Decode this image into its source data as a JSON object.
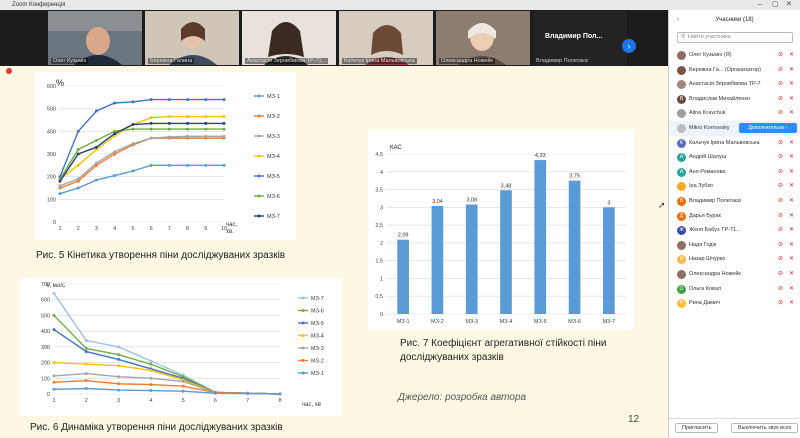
{
  "window": {
    "title": "Zoom Конференція"
  },
  "videos": [
    {
      "name": "Олег Кузьмін"
    },
    {
      "name": "Бережна Галина"
    },
    {
      "name": "Анастасія Зеровбівова ТР-71..."
    },
    {
      "name": "Кальчук Ірина Мальвовська"
    },
    {
      "name": "Олександра Ножейк"
    },
    {
      "name": "Владимир Полетаєв",
      "display": "Владимир Пол..."
    }
  ],
  "slide": {
    "fig5": {
      "caption": "Рис. 5 Кінетика утворення піни досліджуваних зразків",
      "ylabel": "%",
      "xlabel": "час,",
      "xlabel2": "хв.",
      "yticks": [
        "0",
        "100",
        "200",
        "300",
        "400",
        "500",
        "600"
      ],
      "xticks": [
        "1",
        "2",
        "3",
        "4",
        "5",
        "6",
        "7",
        "8",
        "9",
        "10"
      ]
    },
    "fig6": {
      "caption": "Рис. 6  Динаміка утворення піни досліджуваних зразків",
      "ylabel": "V, мл/с",
      "xlabel": "час, хв",
      "yticks": [
        "0",
        "100",
        "200",
        "300",
        "400",
        "500",
        "600",
        "700"
      ],
      "xticks": [
        "1",
        "2",
        "3",
        "4",
        "5",
        "6",
        "7",
        "8"
      ]
    },
    "fig7": {
      "caption_l1": "Рис. 7 Коефіцієнт агрегативної стійкості піни",
      "caption_l2": "досліджуваних зразків",
      "ylabel": "КАС",
      "yticks": [
        "0",
        "0,5",
        "1",
        "1,5",
        "2",
        "2,5",
        "3",
        "3,5",
        "4",
        "4,5"
      ]
    },
    "source": "Джерело: розробка автора",
    "page_number": "12"
  },
  "chart_data": [
    {
      "type": "line",
      "title": "",
      "ylabel": "%",
      "xlabel": "час, хв.",
      "x": [
        1,
        2,
        3,
        4,
        5,
        6,
        7,
        8,
        9,
        10
      ],
      "ylim": [
        0,
        600
      ],
      "series": [
        {
          "name": "МЗ-1",
          "color": "#5b9bd5",
          "values": [
            125,
            150,
            185,
            205,
            225,
            250,
            250,
            250,
            250,
            250
          ]
        },
        {
          "name": "МЗ-2",
          "color": "#ed7d31",
          "values": [
            150,
            180,
            250,
            300,
            340,
            370,
            370,
            370,
            370,
            370
          ]
        },
        {
          "name": "МЗ-3",
          "color": "#a5a5a5",
          "values": [
            160,
            190,
            260,
            310,
            345,
            370,
            375,
            378,
            378,
            378
          ]
        },
        {
          "name": "МЗ-4",
          "color": "#ffc000",
          "values": [
            190,
            250,
            320,
            380,
            430,
            460,
            465,
            465,
            465,
            465
          ]
        },
        {
          "name": "МЗ-5",
          "color": "#4472c4",
          "values": [
            200,
            400,
            490,
            525,
            530,
            540,
            540,
            540,
            540,
            540
          ]
        },
        {
          "name": "МЗ-6",
          "color": "#70ad47",
          "values": [
            190,
            320,
            360,
            400,
            410,
            410,
            410,
            410,
            410,
            410
          ]
        },
        {
          "name": "МЗ-7",
          "color": "#264478",
          "values": [
            180,
            300,
            330,
            390,
            430,
            435,
            435,
            435,
            435,
            435
          ]
        }
      ]
    },
    {
      "type": "line",
      "title": "",
      "ylabel": "V, мл/с",
      "xlabel": "час, хв",
      "x": [
        1,
        2,
        3,
        4,
        5,
        6,
        7,
        8
      ],
      "ylim": [
        0,
        700
      ],
      "series": [
        {
          "name": "МЗ-7",
          "color": "#9dc3e6",
          "values": [
            640,
            340,
            300,
            210,
            120,
            10,
            5,
            0
          ]
        },
        {
          "name": "МЗ-6",
          "color": "#70ad47",
          "values": [
            500,
            290,
            250,
            190,
            110,
            10,
            5,
            0
          ]
        },
        {
          "name": "МЗ-5",
          "color": "#4472c4",
          "values": [
            410,
            270,
            220,
            160,
            100,
            10,
            5,
            0
          ]
        },
        {
          "name": "МЗ-4",
          "color": "#ffc000",
          "values": [
            200,
            190,
            180,
            150,
            90,
            10,
            5,
            0
          ]
        },
        {
          "name": "МЗ-3",
          "color": "#a5a5a5",
          "values": [
            115,
            130,
            110,
            100,
            80,
            10,
            5,
            0
          ]
        },
        {
          "name": "МЗ-2",
          "color": "#ed7d31",
          "values": [
            75,
            85,
            65,
            60,
            50,
            10,
            5,
            0
          ]
        },
        {
          "name": "МЗ-1",
          "color": "#5b9bd5",
          "values": [
            30,
            35,
            25,
            22,
            18,
            5,
            3,
            0
          ]
        }
      ]
    },
    {
      "type": "bar",
      "title": "",
      "ylabel": "КАС",
      "categories": [
        "МЗ-1",
        "МЗ-2",
        "МЗ-3",
        "МЗ-4",
        "МЗ-5",
        "МЗ-6",
        "МЗ-7"
      ],
      "values": [
        2.09,
        3.04,
        3.08,
        3.48,
        4.33,
        3.75,
        3
      ],
      "labels": [
        "2,09",
        "3,04",
        "3,08",
        "3,48",
        "4,33",
        "3,75",
        "3"
      ],
      "ylim": [
        0,
        4.5
      ],
      "color": "#5b9bd5"
    }
  ],
  "participants_panel": {
    "title": "Учасники (18)",
    "search_placeholder": "Найти участника",
    "more_button": "Дополнительно ›",
    "items": [
      {
        "name": "Олег Кузьмін (Я)",
        "initial": "",
        "color": "#8d6e63"
      },
      {
        "name": "Бережна Га... (Организатор)",
        "initial": "",
        "color": "#795548"
      },
      {
        "name": "Анастасія Зеровбівова ТР-7...",
        "initial": "",
        "color": "#a1887f"
      },
      {
        "name": "Владислав Михайленко",
        "initial": "В",
        "color": "#6d4c41"
      },
      {
        "name": "Alina Kravchuk",
        "initial": "",
        "color": "#9e9e9e"
      },
      {
        "name": "Mikro Kornovsky",
        "initial": "",
        "color": "#bdbdbd"
      },
      {
        "name": "Кальчук Ірина Мальвовська",
        "initial": "К",
        "color": "#5c6bc0"
      },
      {
        "name": "Андрій Шалуш",
        "initial": "А",
        "color": "#26a69a"
      },
      {
        "name": "Аня Романова",
        "initial": "А",
        "color": "#26a69a"
      },
      {
        "name": "Іра Зубко",
        "initial": "",
        "color": "#ffa726"
      },
      {
        "name": "Владимир Полетаєв",
        "initial": "В",
        "color": "#ef6c00"
      },
      {
        "name": "Дарья Бурак",
        "initial": "Д",
        "color": "#ef6c00"
      },
      {
        "name": "Женя Бабуз ТР-71...",
        "initial": "Ж",
        "color": "#3949ab"
      },
      {
        "name": "Надя Годік",
        "initial": "",
        "color": "#8d6e63"
      },
      {
        "name": "Назар Шчурко",
        "initial": "Н",
        "color": "#ffb74d"
      },
      {
        "name": "Олександра Ножейк",
        "initial": "",
        "color": "#8d6e63"
      },
      {
        "name": "Ольга Ковал",
        "initial": "О",
        "color": "#43a047"
      },
      {
        "name": "Рина Дамич",
        "initial": "Р",
        "color": "#fbc02d"
      }
    ],
    "invite": "Пригласить",
    "mute_all": "Выключить звук всех"
  }
}
